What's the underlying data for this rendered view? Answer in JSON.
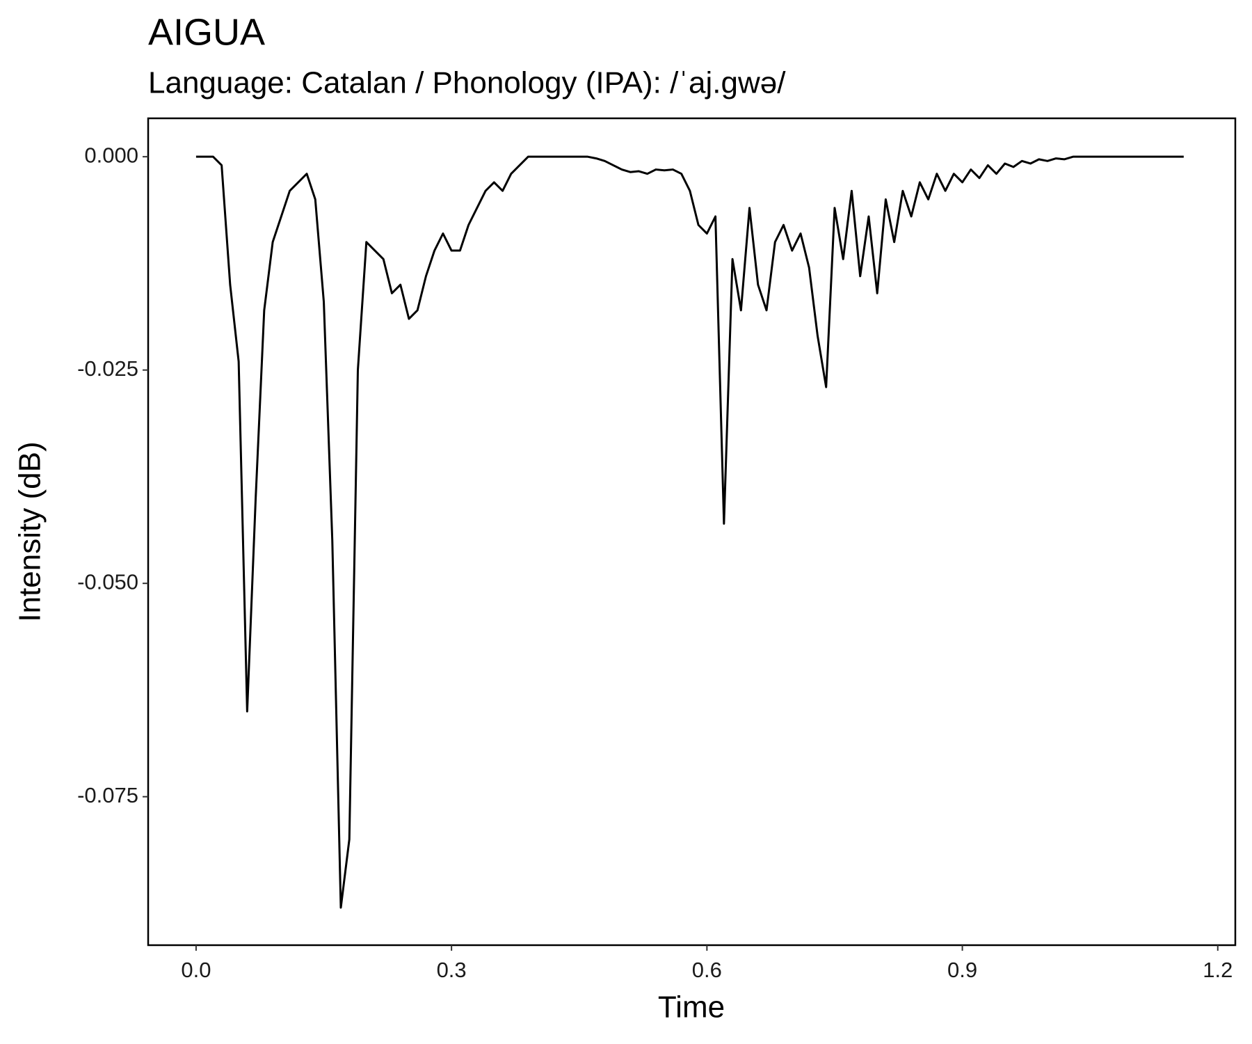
{
  "chart_data": {
    "type": "line",
    "title": "AIGUA",
    "subtitle": "Language: Catalan / Phonology (IPA): /ˈaj.ɡwə/",
    "x_label": "Time",
    "y_label": "Intensity (dB)",
    "x": [
      0,
      0.01,
      0.02,
      0.03,
      0.04,
      0.05,
      0.06,
      0.07,
      0.08,
      0.09,
      0.1,
      0.11,
      0.12,
      0.13,
      0.14,
      0.15,
      0.16,
      0.17,
      0.18,
      0.19,
      0.2,
      0.21,
      0.22,
      0.23,
      0.24,
      0.25,
      0.26,
      0.27,
      0.28,
      0.29,
      0.3,
      0.31,
      0.32,
      0.33,
      0.34,
      0.35,
      0.36,
      0.37,
      0.38,
      0.39,
      0.4,
      0.41,
      0.42,
      0.43,
      0.44,
      0.45,
      0.46,
      0.47,
      0.48,
      0.49,
      0.5,
      0.51,
      0.52,
      0.53,
      0.54,
      0.55,
      0.56,
      0.57,
      0.58,
      0.59,
      0.6,
      0.61,
      0.62,
      0.63,
      0.64,
      0.65,
      0.66,
      0.67,
      0.68,
      0.69,
      0.7,
      0.71,
      0.72,
      0.73,
      0.74,
      0.75,
      0.76,
      0.77,
      0.78,
      0.79,
      0.8,
      0.81,
      0.82,
      0.83,
      0.84,
      0.85,
      0.86,
      0.87,
      0.88,
      0.89,
      0.9,
      0.91,
      0.92,
      0.93,
      0.94,
      0.95,
      0.96,
      0.97,
      0.98,
      0.99,
      1,
      1.01,
      1.02,
      1.03,
      1.04,
      1.05,
      1.06,
      1.07,
      1.08,
      1.09,
      1.1,
      1.11,
      1.12,
      1.13,
      1.14,
      1.15,
      1.16
    ],
    "values": [
      0,
      0,
      0,
      -0.001,
      -0.015,
      -0.024,
      -0.065,
      -0.04,
      -0.018,
      -0.01,
      -0.007,
      -0.004,
      -0.003,
      -0.002,
      -0.005,
      -0.017,
      -0.045,
      -0.088,
      -0.08,
      -0.025,
      -0.01,
      -0.011,
      -0.012,
      -0.016,
      -0.015,
      -0.019,
      -0.018,
      -0.014,
      -0.011,
      -0.009,
      -0.011,
      -0.011,
      -0.008,
      -0.006,
      -0.004,
      -0.003,
      -0.004,
      -0.002,
      -0.001,
      0,
      0,
      0,
      0,
      0,
      0,
      0,
      0,
      -0.0002,
      -0.0005,
      -0.001,
      -0.0015,
      -0.0018,
      -0.0017,
      -0.002,
      -0.0015,
      -0.0016,
      -0.0015,
      -0.002,
      -0.004,
      -0.008,
      -0.009,
      -0.007,
      -0.043,
      -0.012,
      -0.018,
      -0.006,
      -0.015,
      -0.018,
      -0.01,
      -0.008,
      -0.011,
      -0.009,
      -0.013,
      -0.021,
      -0.027,
      -0.006,
      -0.012,
      -0.004,
      -0.014,
      -0.007,
      -0.016,
      -0.005,
      -0.01,
      -0.004,
      -0.007,
      -0.003,
      -0.005,
      -0.002,
      -0.004,
      -0.002,
      -0.003,
      -0.0015,
      -0.0025,
      -0.001,
      -0.002,
      -0.0008,
      -0.0012,
      -0.0005,
      -0.0008,
      -0.0003,
      -0.0005,
      -0.0002,
      -0.0003,
      0,
      0,
      0,
      0,
      0,
      0,
      0,
      0,
      0,
      0,
      0,
      0,
      0,
      0
    ],
    "color": "#000000",
    "xlim": [
      -0.0563,
      1.2206
    ],
    "ylim": [
      -0.0924,
      0.0045
    ],
    "xticks": [
      {
        "value": 0,
        "label": "0.0"
      },
      0.3,
      0.6,
      0.9,
      1.2
    ],
    "yticks": [
      {
        "value": 0,
        "label": "0.000"
      },
      -0.025,
      {
        "value": -0.05,
        "label": "-0.050"
      },
      -0.075
    ],
    "grid": false
  }
}
